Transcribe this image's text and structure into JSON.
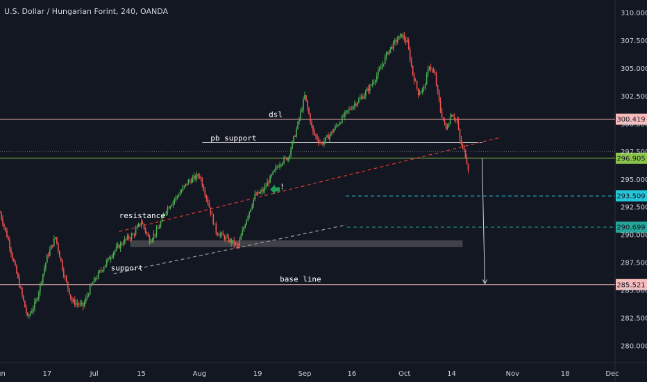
{
  "chart_data": {
    "type": "candlestick",
    "title": "U.S. Dollar / Hungarian Forint, 240, OANDA",
    "ylim": [
      279.0,
      311.0
    ],
    "y_ticks": [
      "280.000",
      "282.500",
      "285.000",
      "287.500",
      "290.000",
      "292.500",
      "295.000",
      "297.500",
      "300.000",
      "302.500",
      "305.000",
      "307.500",
      "310.000"
    ],
    "x_range": [
      0,
      232
    ],
    "x_ticks": [
      {
        "x": 0,
        "label": "Jun"
      },
      {
        "x": 17,
        "label": "17"
      },
      {
        "x": 34,
        "label": "Jul"
      },
      {
        "x": 51,
        "label": "15"
      },
      {
        "x": 72,
        "label": "Aug"
      },
      {
        "x": 93,
        "label": "19"
      },
      {
        "x": 110,
        "label": "Sep"
      },
      {
        "x": 127,
        "label": "16"
      },
      {
        "x": 146,
        "label": "Oct"
      },
      {
        "x": 163,
        "label": "14"
      },
      {
        "x": 185,
        "label": "Nov"
      },
      {
        "x": 204,
        "label": "18"
      },
      {
        "x": 221,
        "label": "Dec"
      }
    ],
    "price_path": [
      [
        0,
        292.0
      ],
      [
        3,
        289.5
      ],
      [
        7,
        285.5
      ],
      [
        10,
        282.5
      ],
      [
        13,
        284.0
      ],
      [
        17,
        288.0
      ],
      [
        20,
        289.8
      ],
      [
        23,
        286.5
      ],
      [
        26,
        284.0
      ],
      [
        30,
        283.6
      ],
      [
        33,
        285.5
      ],
      [
        37,
        287.0
      ],
      [
        41,
        288.5
      ],
      [
        45,
        289.5
      ],
      [
        48,
        290.0
      ],
      [
        51,
        291.2
      ],
      [
        54,
        289.5
      ],
      [
        57,
        290.5
      ],
      [
        60,
        292.3
      ],
      [
        64,
        293.5
      ],
      [
        68,
        294.8
      ],
      [
        72,
        295.4
      ],
      [
        75,
        293.0
      ],
      [
        78,
        290.3
      ],
      [
        82,
        289.6
      ],
      [
        86,
        289.0
      ],
      [
        89,
        291.5
      ],
      [
        92,
        293.5
      ],
      [
        95,
        294.0
      ],
      [
        98,
        295.3
      ],
      [
        101,
        296.5
      ],
      [
        104,
        297.0
      ],
      [
        107,
        299.5
      ],
      [
        110,
        302.5
      ],
      [
        113,
        299.2
      ],
      [
        116,
        298.2
      ],
      [
        119,
        299.0
      ],
      [
        122,
        300.0
      ],
      [
        125,
        301.0
      ],
      [
        128,
        301.8
      ],
      [
        131,
        302.5
      ],
      [
        134,
        303.5
      ],
      [
        137,
        304.8
      ],
      [
        140,
        306.5
      ],
      [
        143,
        307.5
      ],
      [
        145,
        308.0
      ],
      [
        147,
        307.3
      ],
      [
        149,
        304.5
      ],
      [
        151,
        302.8
      ],
      [
        153,
        303.2
      ],
      [
        155,
        305.3
      ],
      [
        157,
        304.3
      ],
      [
        159,
        301.2
      ],
      [
        161,
        299.5
      ],
      [
        163,
        301.0
      ],
      [
        165,
        300.2
      ],
      [
        166,
        298.5
      ],
      [
        168,
        297.2
      ],
      [
        169,
        296.0
      ]
    ],
    "horizontal_levels": [
      {
        "value": 300.419,
        "label": "300.419",
        "color": "#f8bbbb",
        "style": "solid"
      },
      {
        "value": 296.905,
        "label": "296.905",
        "color": "#8bc34a",
        "style": "solid"
      },
      {
        "value": 293.509,
        "label": "293.509",
        "color": "#26c6da",
        "style": "dashed"
      },
      {
        "value": 290.699,
        "label": "290.699",
        "color": "#26a69a",
        "style": "dashed"
      },
      {
        "value": 285.521,
        "label": "285.521",
        "color": "#f8bbbb",
        "style": "solid"
      }
    ],
    "current_price_line": 297.5,
    "annotations": [
      {
        "text": "dsl",
        "x": 97,
        "y": 300.6
      },
      {
        "text": "pb support",
        "x": 76,
        "y": 298.5
      },
      {
        "text": "resistance",
        "x": 43,
        "y": 291.5
      },
      {
        "text": "support",
        "x": 40,
        "y": 286.8
      },
      {
        "text": "base line",
        "x": 101,
        "y": 285.8
      },
      {
        "text": "!",
        "x": 101,
        "y": 294.1
      }
    ],
    "trendlines": [
      {
        "name": "red trendline",
        "color": "#e53935",
        "points": [
          [
            43,
            290.3
          ],
          [
            181,
            298.8
          ]
        ]
      },
      {
        "name": "support trendline",
        "color": "#9e9e9e",
        "points": [
          [
            41,
            286.5
          ],
          [
            125,
            290.9
          ]
        ]
      }
    ],
    "horizontal_segments": [
      {
        "name": "pb support",
        "value": 298.3,
        "x_range": [
          73,
          174
        ],
        "color": "#ffffff"
      }
    ],
    "zones": [
      {
        "name": "support zone",
        "x_range": [
          47,
          167
        ],
        "y_range": [
          288.9,
          289.5
        ],
        "color": "#4a4a50"
      }
    ],
    "projection_arrow": {
      "from": [
        174,
        296.9
      ],
      "to": [
        175,
        285.6
      ]
    }
  }
}
